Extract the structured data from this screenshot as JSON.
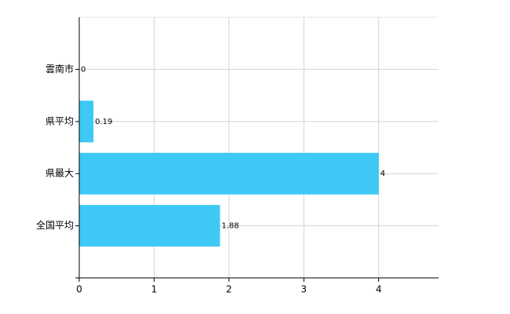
{
  "chart_data": {
    "type": "bar",
    "orientation": "horizontal",
    "categories": [
      "雲南市",
      "県平均",
      "県最大",
      "全国平均"
    ],
    "values": [
      0,
      0.19,
      4,
      1.88
    ],
    "color": "#3ec8f6",
    "xlim": [
      0,
      4.8
    ],
    "xticks": [
      0,
      1,
      2,
      3,
      4
    ],
    "grid": true
  }
}
